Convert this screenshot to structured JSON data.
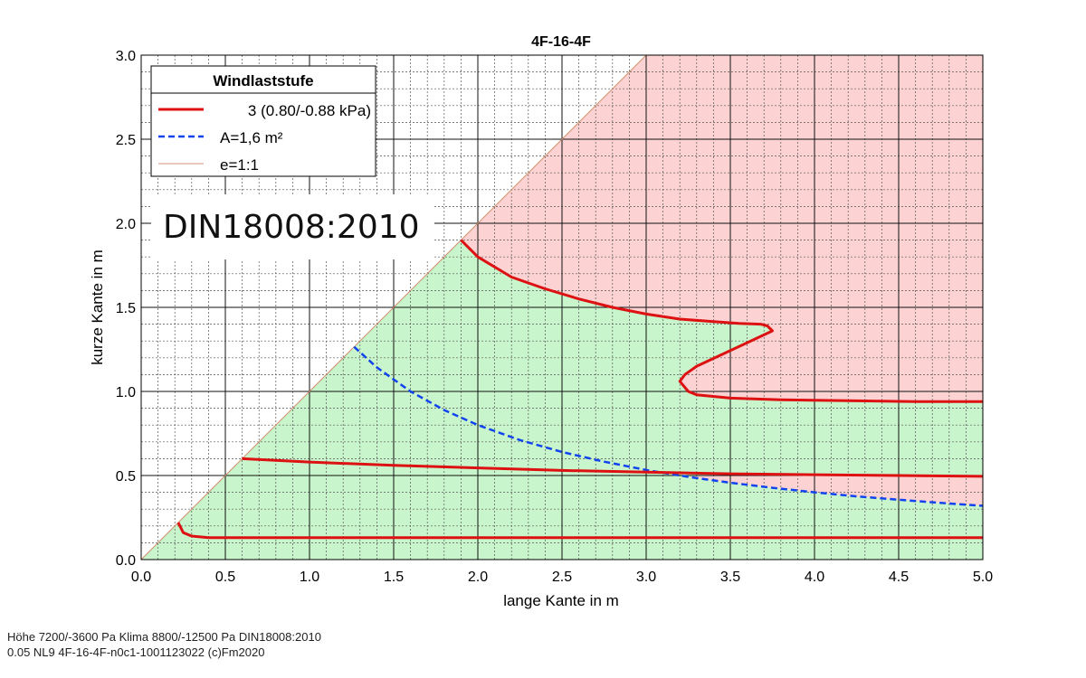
{
  "chart_data": {
    "type": "line",
    "title": "4F-16-4F",
    "xlabel": "lange Kante in m",
    "ylabel": "kurze Kante in m",
    "xlim": [
      0,
      5
    ],
    "ylim": [
      0,
      3
    ],
    "x_ticks": [
      "0.0",
      "0.5",
      "1.0",
      "1.5",
      "2.0",
      "2.5",
      "3.0",
      "3.5",
      "4.0",
      "4.5",
      "5.0"
    ],
    "y_ticks": [
      "0.0",
      "0.5",
      "1.0",
      "1.5",
      "2.0",
      "2.5",
      "3.0"
    ],
    "grid": "major and minor",
    "legend": {
      "title": "Windlaststufe",
      "placement": "top-left",
      "entries": [
        "3 (0.80/-0.88 kPa)",
        "A=1,6 m²",
        "e=1:1"
      ]
    },
    "annotation": "DIN18008:2010",
    "colors": {
      "limit_curve": "#dd1111",
      "area_curve": "#1144ee",
      "diagonal": "#d09070",
      "ok_region": "#c8f5cc",
      "fail_region": "#fcd2d2"
    },
    "series": [
      {
        "name": "3 (0.80/-0.88 kPa)",
        "style": "solid",
        "segments": [
          [
            [
              0.22,
              0.22
            ],
            [
              0.25,
              0.16
            ],
            [
              0.3,
              0.14
            ],
            [
              0.4,
              0.13
            ],
            [
              0.6,
              0.13
            ],
            [
              1.0,
              0.13
            ],
            [
              2.0,
              0.13
            ],
            [
              3.0,
              0.13
            ],
            [
              4.0,
              0.13
            ],
            [
              5.0,
              0.13
            ]
          ],
          [
            [
              0.6,
              0.6
            ],
            [
              1.0,
              0.58
            ],
            [
              1.5,
              0.56
            ],
            [
              2.0,
              0.545
            ],
            [
              2.5,
              0.53
            ],
            [
              3.0,
              0.52
            ],
            [
              3.5,
              0.51
            ],
            [
              4.0,
              0.505
            ],
            [
              4.5,
              0.5
            ],
            [
              5.0,
              0.495
            ]
          ],
          [
            [
              1.9,
              1.9
            ],
            [
              2.0,
              1.8
            ],
            [
              2.2,
              1.68
            ],
            [
              2.4,
              1.61
            ],
            [
              2.6,
              1.55
            ],
            [
              2.8,
              1.5
            ],
            [
              3.0,
              1.46
            ],
            [
              3.2,
              1.43
            ],
            [
              3.4,
              1.415
            ],
            [
              3.55,
              1.405
            ],
            [
              3.68,
              1.4
            ],
            [
              3.72,
              1.39
            ],
            [
              3.75,
              1.36
            ],
            [
              3.6,
              1.29
            ],
            [
              3.45,
              1.22
            ],
            [
              3.3,
              1.15
            ],
            [
              3.23,
              1.1
            ],
            [
              3.2,
              1.06
            ],
            [
              3.25,
              1.0
            ],
            [
              3.3,
              0.98
            ],
            [
              3.5,
              0.96
            ],
            [
              3.8,
              0.95
            ],
            [
              4.2,
              0.945
            ],
            [
              4.6,
              0.94
            ],
            [
              5.0,
              0.94
            ]
          ]
        ]
      },
      {
        "name": "A=1,6 m²",
        "style": "dashed",
        "points": [
          [
            1.265,
            1.265
          ],
          [
            1.4,
            1.143
          ],
          [
            1.6,
            1.0
          ],
          [
            1.8,
            0.889
          ],
          [
            2.0,
            0.8
          ],
          [
            2.25,
            0.711
          ],
          [
            2.5,
            0.64
          ],
          [
            2.75,
            0.582
          ],
          [
            3.0,
            0.533
          ],
          [
            3.25,
            0.492
          ],
          [
            3.5,
            0.457
          ],
          [
            3.75,
            0.427
          ],
          [
            4.0,
            0.4
          ],
          [
            4.25,
            0.376
          ],
          [
            4.5,
            0.356
          ],
          [
            4.75,
            0.337
          ],
          [
            5.0,
            0.32
          ]
        ]
      },
      {
        "name": "e=1:1",
        "style": "thin",
        "points": [
          [
            0,
            0
          ],
          [
            3,
            3
          ]
        ]
      }
    ]
  },
  "footer": {
    "line1": "Höhe 7200/-3600 Pa  Klima 8800/-12500 Pa  DIN18008:2010",
    "line2": "0.05 NL9 4F-16-4F-n0c1-1001123022 (c)Fm2020"
  }
}
